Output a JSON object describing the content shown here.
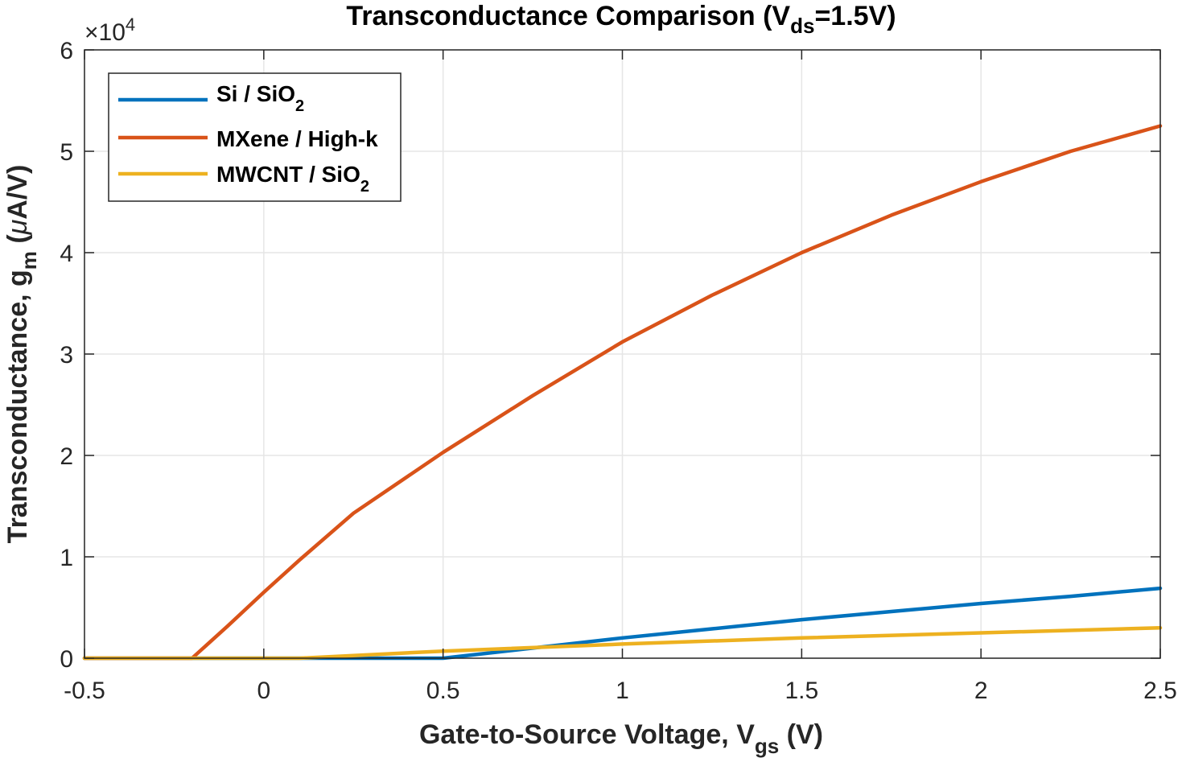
{
  "chart_data": {
    "type": "line",
    "title": {
      "main": "Transconductance Comparison (V",
      "sub": "ds",
      "tail": "=1.5V)"
    },
    "xlabel": {
      "main": "Gate-to-Source Voltage, V",
      "sub": "gs",
      "tail": " (V)"
    },
    "ylabel": {
      "main": "Transconductance, g",
      "sub": "m",
      "mid": " (",
      "mu": "μ",
      "tail": "A/V)"
    },
    "y_exponent": {
      "base": "×10",
      "power": "4"
    },
    "xlim": [
      -0.5,
      2.5
    ],
    "ylim": [
      0,
      60000
    ],
    "grid": true,
    "legend_position": "top-left",
    "x_ticks": [
      -0.5,
      0,
      0.5,
      1,
      1.5,
      2,
      2.5
    ],
    "x_tick_labels": [
      "-0.5",
      "0",
      "0.5",
      "1",
      "1.5",
      "2",
      "2.5"
    ],
    "y_ticks": [
      0,
      10000,
      20000,
      30000,
      40000,
      50000,
      60000
    ],
    "y_tick_labels": [
      "0",
      "1",
      "2",
      "3",
      "4",
      "5",
      "6"
    ],
    "series": [
      {
        "name": "Si / SiO2",
        "label_main": "Si / SiO",
        "label_sub": "2",
        "color": "#0072BD",
        "x": [
          -0.5,
          0,
          0.5,
          0.55,
          0.75,
          1.0,
          1.25,
          1.5,
          1.75,
          2.0,
          2.25,
          2.5
        ],
        "y": [
          0,
          0,
          0,
          200,
          1000,
          2000,
          2900,
          3800,
          4600,
          5400,
          6100,
          6900
        ]
      },
      {
        "name": "MXene / High-k",
        "label_main": "MXene / High-k",
        "label_sub": "",
        "color": "#D95319",
        "x": [
          -0.5,
          -0.2,
          -0.1,
          0,
          0.1,
          0.25,
          0.5,
          0.75,
          1.0,
          1.25,
          1.5,
          1.75,
          2.0,
          2.25,
          2.5
        ],
        "y": [
          0,
          0,
          3200,
          6500,
          9700,
          14300,
          20300,
          25900,
          31200,
          35800,
          40000,
          43700,
          47000,
          50000,
          52500
        ]
      },
      {
        "name": "MWCNT / SiO2",
        "label_main": "MWCNT / SiO",
        "label_sub": "2",
        "color": "#EDB120",
        "x": [
          -0.5,
          0,
          0.1,
          0.5,
          1.0,
          1.5,
          2.0,
          2.5
        ],
        "y": [
          0,
          0,
          0,
          700,
          1400,
          2000,
          2500,
          3000
        ]
      }
    ]
  }
}
